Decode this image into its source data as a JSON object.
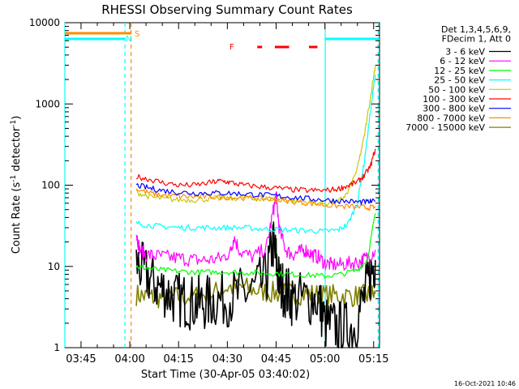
{
  "chart_data": {
    "type": "line",
    "title": "RHESSI Observing Summary Count Rates",
    "xlabel": "Start Time (30-Apr-05 03:40:02)",
    "ylabel_main": "Count Rate (s",
    "ylabel_sup1": "-1",
    "ylabel_mid": " detector",
    "ylabel_sup2": "-1",
    "ylabel_end": ")",
    "date_stamp": "16-Oct-2021 10:46",
    "x_ticks": [
      {
        "t": 225,
        "label": "03:45"
      },
      {
        "t": 240,
        "label": "04:00"
      },
      {
        "t": 255,
        "label": "04:15"
      },
      {
        "t": 270,
        "label": "04:30"
      },
      {
        "t": 285,
        "label": "04:45"
      },
      {
        "t": 300,
        "label": "05:00"
      },
      {
        "t": 315,
        "label": "05:15"
      }
    ],
    "xlim": [
      220.03,
      316.8
    ],
    "y_ticks": [
      1,
      10,
      100,
      1000,
      10000
    ],
    "y_tick_labels": [
      "1",
      "10",
      "100",
      "1000",
      "10000"
    ],
    "ylim": [
      1,
      10000
    ],
    "yscale": "log",
    "legend": {
      "header_lines": [
        "Det 1,3,4,5,6,9,",
        "FDecim 1, Att 0"
      ],
      "placement": "right-outside"
    },
    "series": [
      {
        "name": "3 - 6 keV",
        "color": "#000000",
        "x": [
          242,
          245,
          248,
          251,
          254,
          257,
          260,
          263,
          266,
          270,
          274,
          278,
          282,
          284,
          285,
          286,
          288,
          290,
          294,
          298,
          300,
          303,
          306,
          309,
          312,
          314,
          315.5
        ],
        "y": [
          11,
          8,
          6,
          5,
          4,
          3.8,
          3.5,
          3.5,
          3.8,
          4,
          4.5,
          5,
          7,
          20,
          12,
          6,
          5,
          4,
          4,
          4,
          2,
          1.8,
          1.7,
          1.8,
          4,
          8,
          12
        ]
      },
      {
        "name": "6 - 12 keV",
        "color": "#ff00ff",
        "x": [
          242,
          243,
          245,
          248,
          252,
          256,
          260,
          264,
          268,
          271,
          272,
          274,
          278,
          282,
          284,
          285,
          286,
          288,
          290,
          292,
          294,
          296,
          298,
          300,
          302,
          305,
          308,
          311,
          313,
          315.5
        ],
        "y": [
          26,
          16,
          14,
          13.5,
          13,
          12.5,
          12,
          12,
          12.5,
          15,
          23,
          15,
          13,
          17,
          45,
          75,
          28,
          16,
          14,
          15,
          16,
          14,
          13,
          11,
          10.5,
          10.5,
          11,
          11.5,
          13,
          16
        ]
      },
      {
        "name": "12 - 25 keV",
        "color": "#00ff00",
        "x": [
          242,
          245,
          250,
          255,
          260,
          265,
          270,
          275,
          280,
          285,
          290,
          295,
          300,
          305,
          310,
          313,
          315.5
        ],
        "y": [
          10,
          9.5,
          9,
          8.7,
          8.5,
          8.5,
          8.5,
          8.4,
          8.3,
          8.2,
          8,
          7.8,
          7.6,
          8,
          9,
          12,
          45
        ]
      },
      {
        "name": "25 - 50 keV",
        "color": "#00ffff",
        "x": [
          242,
          246,
          250,
          255,
          260,
          265,
          270,
          275,
          280,
          285,
          290,
          295,
          300,
          304,
          307,
          310,
          312,
          314,
          315.5
        ],
        "y": [
          34,
          32,
          31,
          30,
          30,
          30,
          30,
          30,
          29,
          28.5,
          28,
          27.5,
          27,
          28,
          33,
          60,
          180,
          800,
          2300
        ]
      },
      {
        "name": "50 - 100 keV",
        "color": "#c8c800",
        "x": [
          242,
          246,
          250,
          255,
          260,
          265,
          270,
          275,
          280,
          285,
          290,
          295,
          300,
          304,
          307,
          310,
          312,
          314,
          315.5
        ],
        "y": [
          82,
          72,
          68,
          66,
          66,
          68,
          69,
          70,
          69,
          68,
          64,
          62,
          60,
          62,
          80,
          160,
          380,
          1200,
          3000
        ]
      },
      {
        "name": "100 - 300 keV",
        "color": "#ff0000",
        "x": [
          242,
          246,
          250,
          255,
          260,
          265,
          268,
          271,
          275,
          280,
          285,
          290,
          295,
          300,
          304,
          307,
          310,
          312,
          314,
          315.5
        ],
        "y": [
          128,
          118,
          108,
          100,
          100,
          108,
          113,
          108,
          100,
          96,
          92,
          88,
          86,
          86,
          90,
          98,
          110,
          130,
          170,
          280
        ]
      },
      {
        "name": "300 - 800 keV",
        "color": "#0000ff",
        "x": [
          242,
          246,
          250,
          255,
          260,
          265,
          270,
          275,
          280,
          285,
          290,
          295,
          300,
          305,
          310,
          313,
          315.5
        ],
        "y": [
          100,
          92,
          86,
          82,
          80,
          80,
          80,
          78,
          76,
          74,
          71,
          68,
          66,
          64,
          62,
          62,
          63
        ]
      },
      {
        "name": "800 - 7000 keV",
        "color": "#ff8c00",
        "x": [
          242,
          246,
          250,
          255,
          260,
          265,
          270,
          275,
          280,
          285,
          290,
          295,
          300,
          305,
          310,
          313,
          315.5
        ],
        "y": [
          90,
          80,
          75,
          73,
          72,
          72,
          71,
          70,
          68,
          66,
          63,
          60,
          57,
          55,
          54,
          53,
          53
        ]
      },
      {
        "name": "7000 - 15000 keV",
        "color": "#808000",
        "x": [
          242,
          246,
          250,
          255,
          260,
          265,
          270,
          275,
          280,
          285,
          290,
          295,
          300,
          305,
          310,
          313,
          315.5
        ],
        "y": [
          4.5,
          4.2,
          4.1,
          4.2,
          4.3,
          4.6,
          5.5,
          5.5,
          5.0,
          4.7,
          4.6,
          4.6,
          4.4,
          4.4,
          4.3,
          4.4,
          4.6
        ]
      }
    ],
    "flags": {
      "saa_color": "#ff8c00",
      "night_color": "#00ffff",
      "flare_color": "#ff0000",
      "saa_label": "S",
      "night_label": "N",
      "flare_label": "F",
      "saa_segments": [
        [
          220.03,
          240.4
        ]
      ],
      "night_segments": [
        [
          220.03,
          238.5
        ],
        [
          300.1,
          316.8
        ]
      ],
      "flare_segments": [
        [
          279.2,
          280.7
        ],
        [
          284.6,
          289.0
        ],
        [
          295.1,
          297.7
        ]
      ],
      "vlines": [
        {
          "t": 220.03,
          "color": "#00ffff",
          "style": "solid"
        },
        {
          "t": 238.5,
          "color": "#00ffff",
          "style": "dashed"
        },
        {
          "t": 240.4,
          "color": "#ff8c00",
          "style": "dashed"
        },
        {
          "t": 300.1,
          "color": "#00ffff",
          "style": "solid"
        },
        {
          "t": 316.4,
          "color": "#00ffff",
          "style": "dashed"
        }
      ]
    }
  }
}
